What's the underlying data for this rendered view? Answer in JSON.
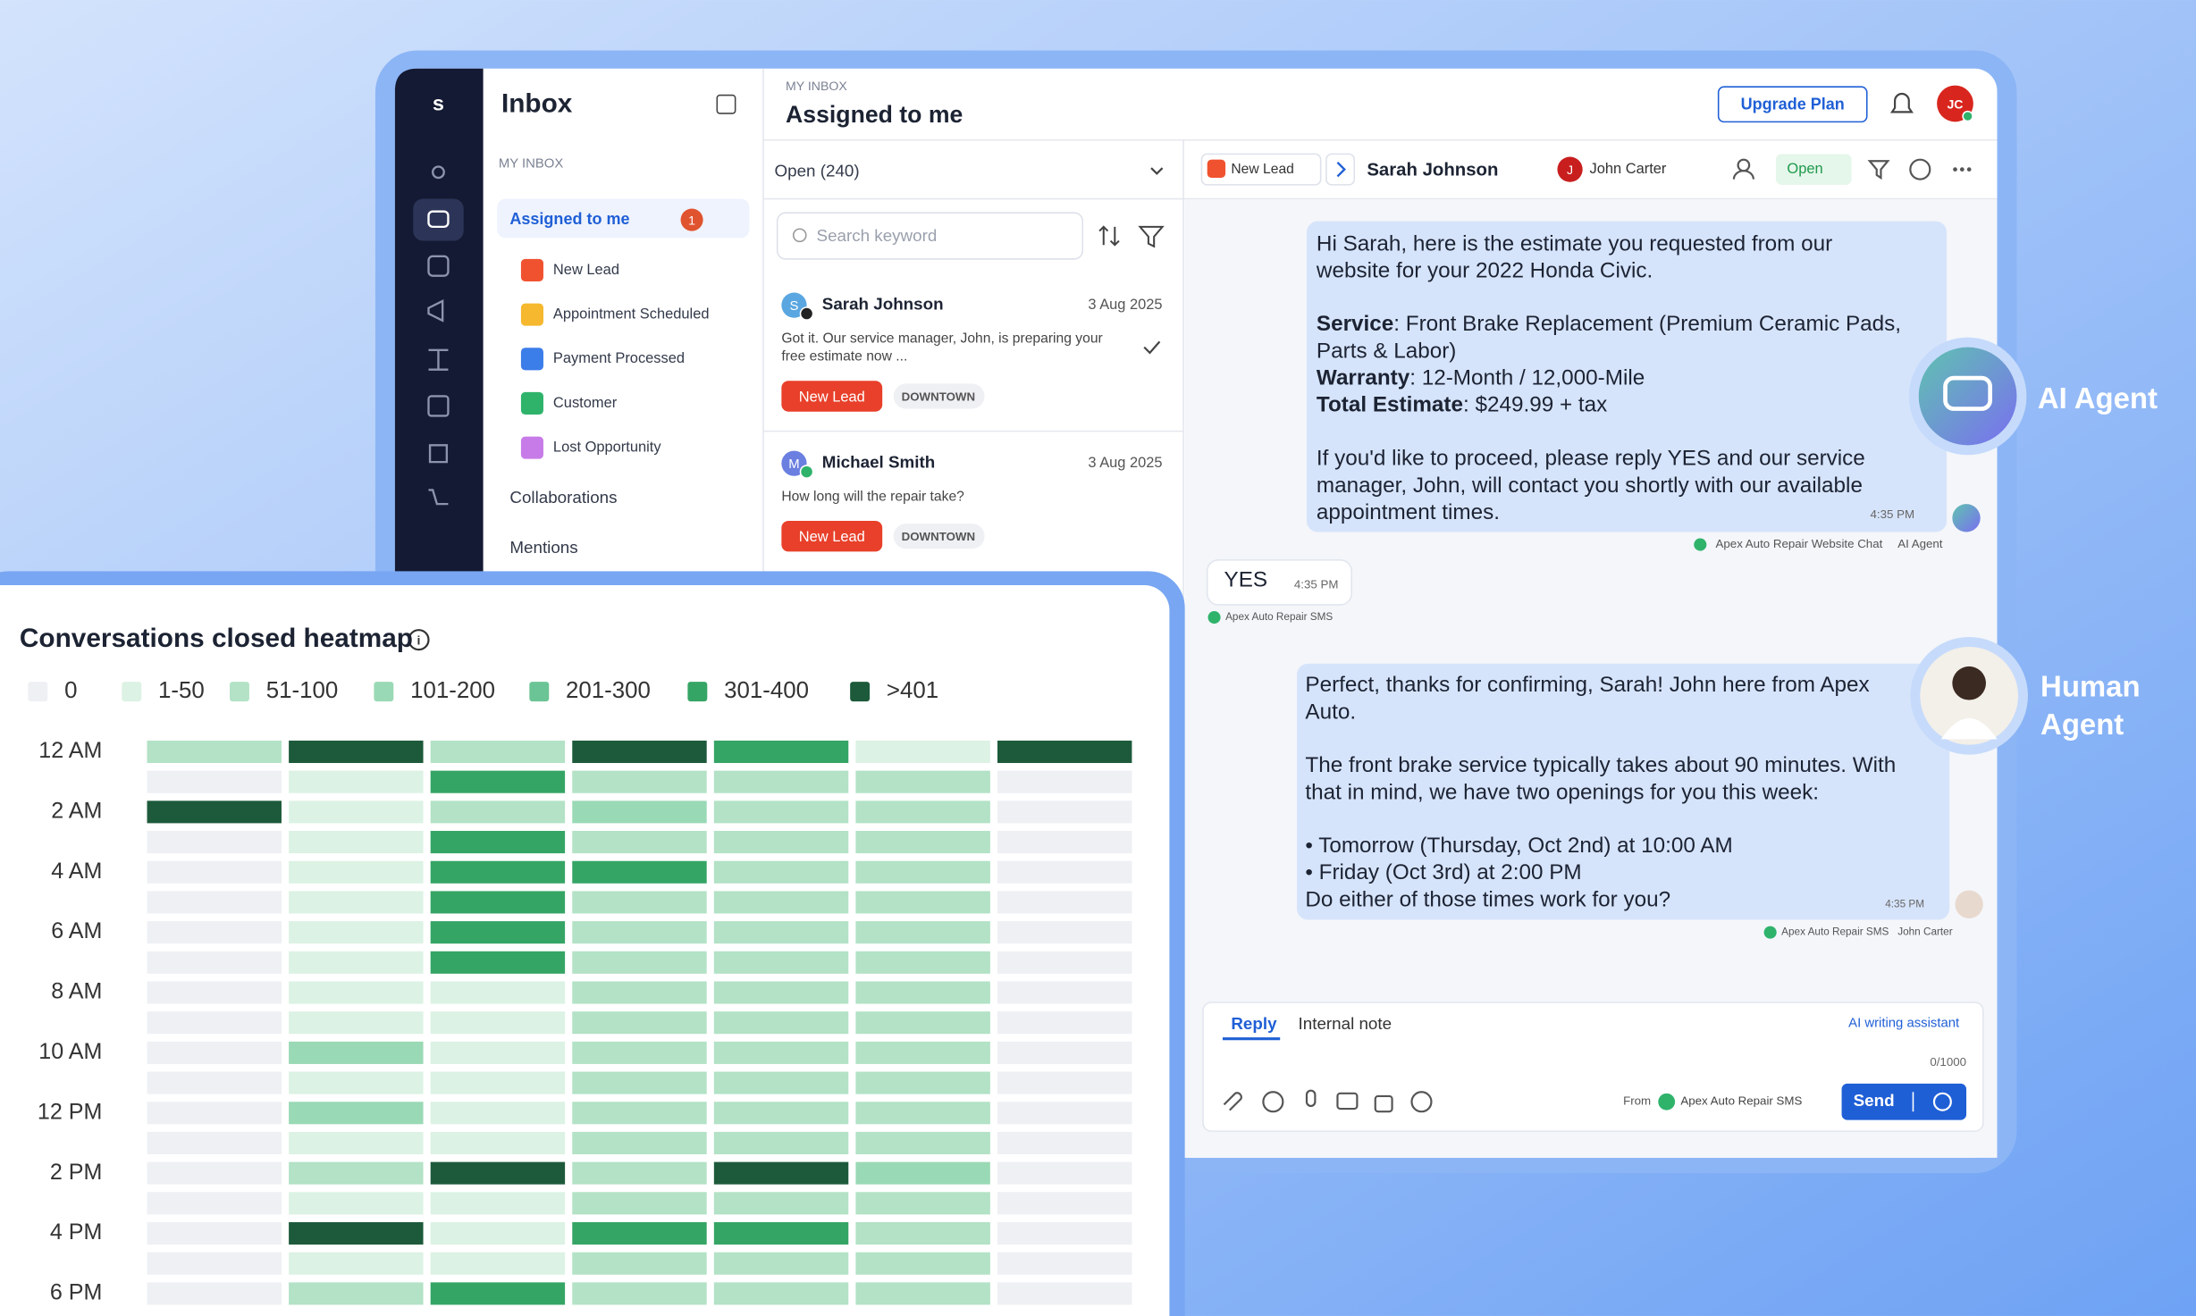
{
  "sidebar": {
    "title": "Inbox",
    "section": "MY INBOX",
    "active": {
      "label": "Assigned to me",
      "badge": "1"
    },
    "labels": [
      {
        "name": "New Lead",
        "color": "#f0522f"
      },
      {
        "name": "Appointment Scheduled",
        "color": "#f5b82e"
      },
      {
        "name": "Payment Processed",
        "color": "#3b7de9"
      },
      {
        "name": "Customer",
        "color": "#2fb36b"
      },
      {
        "name": "Lost Opportunity",
        "color": "#c77be8"
      }
    ],
    "links": [
      "Collaborations",
      "Mentions"
    ]
  },
  "header": {
    "breadcrumb": "MY INBOX",
    "title": "Assigned to me",
    "upgrade": "Upgrade Plan",
    "avatar": "JC"
  },
  "list": {
    "filter": "Open (240)",
    "search_placeholder": "Search keyword",
    "conversations": [
      {
        "initial": "S",
        "name": "Sarah Johnson",
        "date": "3 Aug 2025",
        "preview": [
          "Got it. Our service manager, John, is preparing your",
          "free estimate now ..."
        ],
        "tags": [
          "New Lead",
          "DOWNTOWN"
        ]
      },
      {
        "initial": "M",
        "name": "Michael Smith",
        "date": "3 Aug 2025",
        "preview": [
          "How long will the repair take?"
        ],
        "tags": [
          "New Lead",
          "DOWNTOWN"
        ]
      }
    ]
  },
  "conversation": {
    "tag": "New Lead",
    "contact": "Sarah Johnson",
    "assignee_initial": "J",
    "assignee": "John Carter",
    "status": "Open"
  },
  "messages": [
    {
      "paragraphs": [
        [
          "Hi Sarah, here is the estimate you requested from our",
          "website for your 2022 Honda Civic."
        ],
        [
          {
            "bold": "Service",
            "text": ": Front Brake Replacement (Premium Ceramic Pads,"
          },
          "Parts & Labor)",
          {
            "bold": "Warranty",
            "text": ": 12-Month / 12,000-Mile"
          },
          {
            "bold": "Total Estimate",
            "text": ": $249.99 + tax"
          }
        ],
        [
          "If you'd like to proceed, please reply YES and our service",
          "manager, John, will contact you shortly with our available",
          "appointment times."
        ]
      ],
      "time": "4:35 PM",
      "channel": "Apex Auto Repair Website Chat",
      "sender": "AI Agent"
    },
    {
      "text": "YES",
      "time": "4:35 PM",
      "channel": "Apex Auto Repair SMS"
    },
    {
      "paragraphs": [
        [
          "Perfect, thanks for confirming, Sarah! John here from Apex",
          "Auto."
        ],
        [
          "The front brake service typically takes about 90 minutes. With",
          "that in mind, we have two openings for you this week:"
        ],
        [
          "• Tomorrow (Thursday, Oct 2nd) at 10:00 AM",
          "• Friday (Oct 3rd) at 2:00 PM",
          "Do either of those times work for you?"
        ]
      ],
      "time": "4:35 PM",
      "channel": "Apex Auto Repair SMS",
      "sender": "John Carter"
    }
  ],
  "agents": {
    "ai": "AI Agent",
    "human": [
      "Human",
      "Agent"
    ]
  },
  "reply": {
    "tabs": [
      "Reply",
      "Internal note"
    ],
    "assistant": "AI writing assistant",
    "counter": "0/1000",
    "from_label": "From",
    "from": "Apex Auto Repair SMS",
    "send": "Send"
  },
  "heatmap": {
    "title": "Conversations closed heatmap",
    "legend": [
      {
        "label": "0",
        "color": "#eef0f4"
      },
      {
        "label": "1-50",
        "color": "#dcf2e4"
      },
      {
        "label": "51-100",
        "color": "#b3e2c6"
      },
      {
        "label": "101-200",
        "color": "#9ad9b5"
      },
      {
        "label": "201-300",
        "color": "#6bc495"
      },
      {
        "label": "301-400",
        "color": "#35a565"
      },
      {
        "label": ">401",
        "color": "#1d5a3b"
      }
    ],
    "row_labels": [
      "12 AM",
      null,
      "2 AM",
      null,
      "4 AM",
      null,
      "6 AM",
      null,
      "8 AM",
      null,
      "10 AM",
      null,
      "12 PM",
      null,
      "2 PM",
      null,
      "4 PM",
      null,
      "6 PM"
    ],
    "cells": [
      [
        2,
        6,
        2,
        6,
        5,
        1,
        6
      ],
      [
        0,
        1,
        5,
        2,
        2,
        2,
        0
      ],
      [
        6,
        1,
        2,
        3,
        2,
        2,
        0
      ],
      [
        0,
        1,
        5,
        2,
        2,
        2,
        0
      ],
      [
        0,
        1,
        5,
        5,
        2,
        2,
        0
      ],
      [
        0,
        1,
        5,
        2,
        2,
        2,
        0
      ],
      [
        0,
        1,
        5,
        2,
        2,
        2,
        0
      ],
      [
        0,
        1,
        5,
        2,
        2,
        2,
        0
      ],
      [
        0,
        1,
        1,
        2,
        2,
        2,
        0
      ],
      [
        0,
        1,
        1,
        2,
        2,
        2,
        0
      ],
      [
        0,
        3,
        1,
        2,
        2,
        2,
        0
      ],
      [
        0,
        1,
        1,
        2,
        2,
        2,
        0
      ],
      [
        0,
        3,
        1,
        2,
        2,
        2,
        0
      ],
      [
        0,
        1,
        1,
        2,
        2,
        2,
        0
      ],
      [
        0,
        2,
        6,
        2,
        6,
        3,
        0
      ],
      [
        0,
        1,
        1,
        2,
        2,
        2,
        0
      ],
      [
        0,
        6,
        1,
        5,
        5,
        2,
        0
      ],
      [
        0,
        1,
        1,
        2,
        2,
        2,
        0
      ],
      [
        0,
        2,
        5,
        2,
        2,
        2,
        0
      ]
    ]
  }
}
